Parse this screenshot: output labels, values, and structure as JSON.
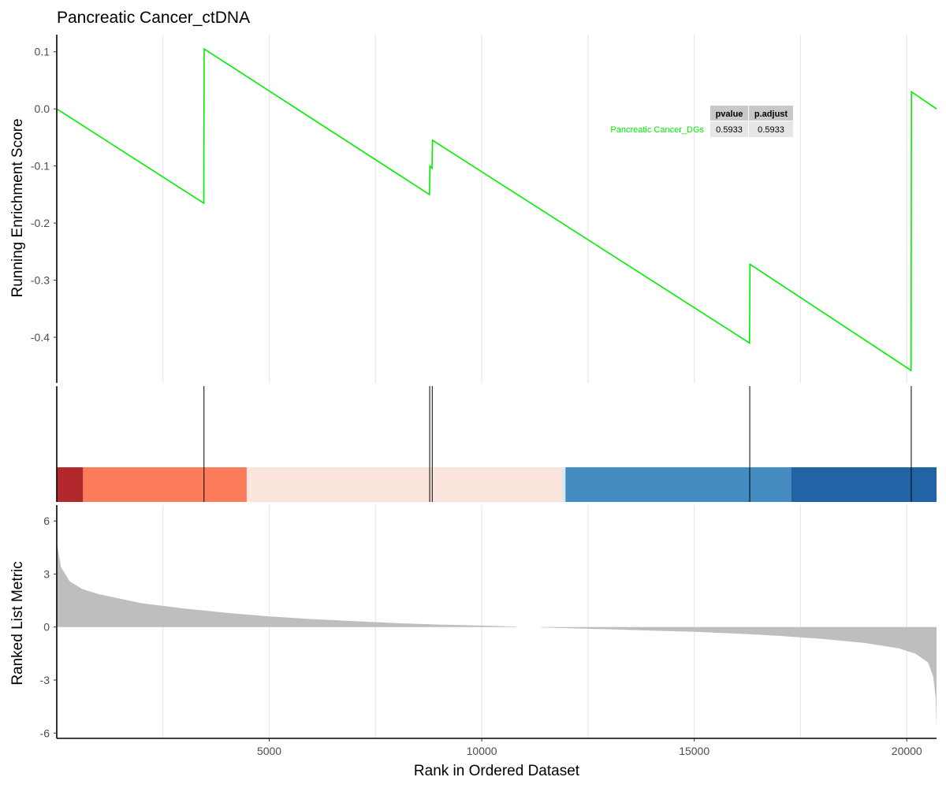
{
  "colors": {
    "curve": "#00ee00",
    "gridline": "#e8e8e8",
    "metric_fill": "#bebebe",
    "hit_line": "#000000",
    "table_header_bg": "#c8c8c8",
    "table_cell_bg": "#e6e6e6"
  },
  "chart_data": {
    "type": "line",
    "title": "Pancreatic Cancer_ctDNA",
    "xlabel": "Rank in Ordered Dataset",
    "xlim": [
      1,
      20700
    ],
    "x_ticks": [
      5000,
      10000,
      15000,
      20000
    ],
    "x_tick_labels": [
      "5000",
      "10000",
      "15000",
      "20000"
    ],
    "grid": "vertical major and minor gridlines",
    "panels": {
      "running_score": {
        "ylabel": "Running Enrichment Score",
        "ylim": [
          -0.48,
          0.13
        ],
        "y_ticks": [
          0.1,
          0.0,
          -0.1,
          -0.2,
          -0.3,
          -0.4
        ],
        "y_tick_labels": [
          "0.1",
          "0.0",
          "-0.1",
          "-0.2",
          "-0.3",
          "-0.4"
        ],
        "series": [
          {
            "name": "Pancreatic Cancer_DGs",
            "points": [
              [
                1,
                0.0
              ],
              [
                3460,
                -0.165
              ],
              [
                3470,
                0.105
              ],
              [
                8770,
                -0.15
              ],
              [
                8780,
                -0.1
              ],
              [
                8830,
                -0.104
              ],
              [
                8840,
                -0.055
              ],
              [
                16300,
                -0.41
              ],
              [
                16310,
                -0.272
              ],
              [
                20100,
                -0.458
              ],
              [
                20110,
                0.03
              ],
              [
                20700,
                0.0
              ]
            ]
          }
        ]
      },
      "hits": {
        "gene_positions": [
          3465,
          8775,
          8835,
          16305,
          20105
        ],
        "color_bands": [
          {
            "from": 1,
            "to": 620,
            "color": "#b2282d"
          },
          {
            "from": 620,
            "to": 4470,
            "color": "#fb7b5b"
          },
          {
            "from": 4470,
            "to": 11880,
            "color": "#fbe5dc"
          },
          {
            "from": 11880,
            "to": 11970,
            "color": "#dfe8f0"
          },
          {
            "from": 11970,
            "to": 17280,
            "color": "#438bc1"
          },
          {
            "from": 17280,
            "to": 20700,
            "color": "#2263a5"
          }
        ]
      },
      "ranked_metric": {
        "ylabel": "Ranked List Metric",
        "ylim": [
          -6.3,
          6.9
        ],
        "y_ticks": [
          6,
          3,
          0,
          -3,
          -6
        ],
        "y_tick_labels": [
          "6",
          "3",
          "0",
          "-3",
          "-6"
        ],
        "profile": [
          [
            1,
            4.8
          ],
          [
            100,
            3.4
          ],
          [
            300,
            2.6
          ],
          [
            600,
            2.15
          ],
          [
            1000,
            1.85
          ],
          [
            2000,
            1.35
          ],
          [
            3000,
            1.05
          ],
          [
            4000,
            0.8
          ],
          [
            5000,
            0.6
          ],
          [
            6000,
            0.45
          ],
          [
            7000,
            0.33
          ],
          [
            8000,
            0.22
          ],
          [
            9000,
            0.14
          ],
          [
            10000,
            0.08
          ],
          [
            10800,
            0.03
          ],
          [
            10810,
            0.0
          ],
          [
            11400,
            0.0
          ],
          [
            11410,
            -0.02
          ],
          [
            12000,
            -0.06
          ],
          [
            13000,
            -0.13
          ],
          [
            14000,
            -0.2
          ],
          [
            15000,
            -0.27
          ],
          [
            16000,
            -0.37
          ],
          [
            17000,
            -0.5
          ],
          [
            18000,
            -0.67
          ],
          [
            19000,
            -0.9
          ],
          [
            19800,
            -1.2
          ],
          [
            20200,
            -1.5
          ],
          [
            20500,
            -2.0
          ],
          [
            20620,
            -2.8
          ],
          [
            20680,
            -4.0
          ],
          [
            20700,
            -5.7
          ]
        ]
      }
    },
    "table": {
      "columns": [
        "pvalue",
        "p.adjust"
      ],
      "rows": [
        {
          "label": "Pancreatic Cancer_DGs",
          "values": [
            "0.5933",
            "0.5933"
          ]
        }
      ]
    }
  }
}
